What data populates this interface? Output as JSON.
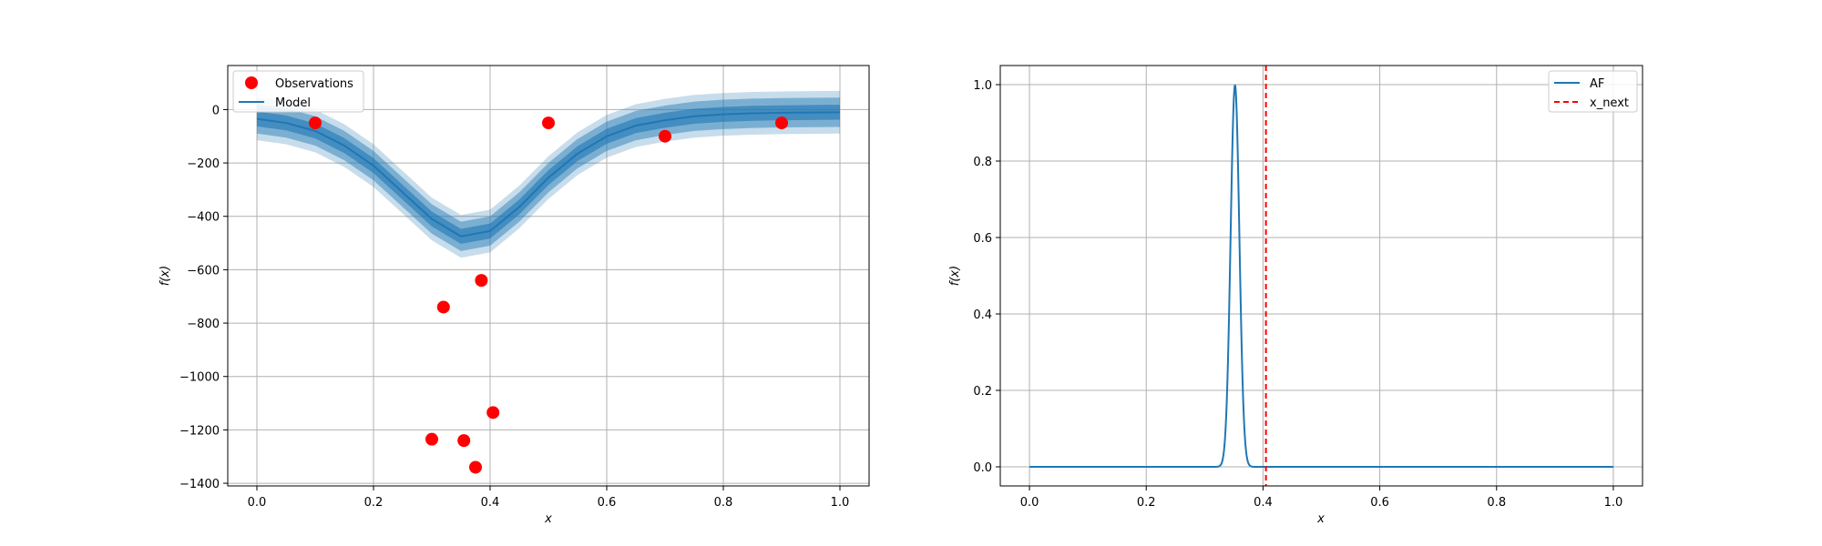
{
  "chart_data": [
    {
      "type": "line",
      "xlabel": "x",
      "ylabel": "f(x)",
      "xlim": [
        -0.05,
        1.05
      ],
      "ylim": [
        -1410,
        165
      ],
      "xticks": [
        0.0,
        0.2,
        0.4,
        0.6,
        0.8,
        1.0
      ],
      "xtick_labels": [
        "0.0",
        "0.2",
        "0.4",
        "0.6",
        "0.8",
        "1.0"
      ],
      "yticks": [
        0,
        -200,
        -400,
        -600,
        -800,
        -1000,
        -1200,
        -1400
      ],
      "ytick_labels": [
        "0",
        "−200",
        "−400",
        "−600",
        "−800",
        "−1000",
        "−1200",
        "−1400"
      ],
      "grid": true,
      "legend": {
        "position": "top-left",
        "entries": [
          "Observations",
          "Model"
        ]
      },
      "observations": {
        "name": "Observations",
        "color": "#ff0000",
        "x": [
          0.1,
          0.3,
          0.32,
          0.355,
          0.375,
          0.385,
          0.405,
          0.5,
          0.7,
          0.9
        ],
        "y": [
          -50,
          -1235,
          -740,
          -1240,
          -1340,
          -640,
          -1135,
          -50,
          -100,
          -50
        ]
      },
      "model": {
        "name": "Model",
        "color": "#1f77b4",
        "x": [
          0.0,
          0.05,
          0.1,
          0.15,
          0.2,
          0.25,
          0.3,
          0.35,
          0.4,
          0.45,
          0.5,
          0.55,
          0.6,
          0.65,
          0.7,
          0.75,
          0.8,
          0.85,
          0.9,
          0.95,
          1.0
        ],
        "mean": [
          -35,
          -50,
          -80,
          -135,
          -210,
          -310,
          -410,
          -475,
          -455,
          -365,
          -255,
          -165,
          -100,
          -60,
          -40,
          -25,
          -18,
          -14,
          -12,
          -11,
          -10
        ],
        "band_half_widths": [
          28,
          55,
          80
        ],
        "band_alpha": [
          0.6,
          0.45,
          0.25
        ]
      }
    },
    {
      "type": "line",
      "xlabel": "x",
      "ylabel": "f(x)",
      "xlim": [
        -0.05,
        1.05
      ],
      "ylim": [
        -0.05,
        1.05
      ],
      "xticks": [
        0.0,
        0.2,
        0.4,
        0.6,
        0.8,
        1.0
      ],
      "xtick_labels": [
        "0.0",
        "0.2",
        "0.4",
        "0.6",
        "0.8",
        "1.0"
      ],
      "yticks": [
        0.0,
        0.2,
        0.4,
        0.6,
        0.8,
        1.0
      ],
      "ytick_labels": [
        "0.0",
        "0.2",
        "0.4",
        "0.6",
        "0.8",
        "1.0"
      ],
      "grid": true,
      "legend": {
        "position": "top-right",
        "entries": [
          "AF",
          "x_next"
        ]
      },
      "af": {
        "name": "AF",
        "color": "#1f77b4",
        "peak_x": 0.352,
        "peak_y": 1.0,
        "width": 0.0075
      },
      "x_next": {
        "name": "x_next",
        "color": "#ff0000",
        "x": 0.405
      }
    }
  ]
}
